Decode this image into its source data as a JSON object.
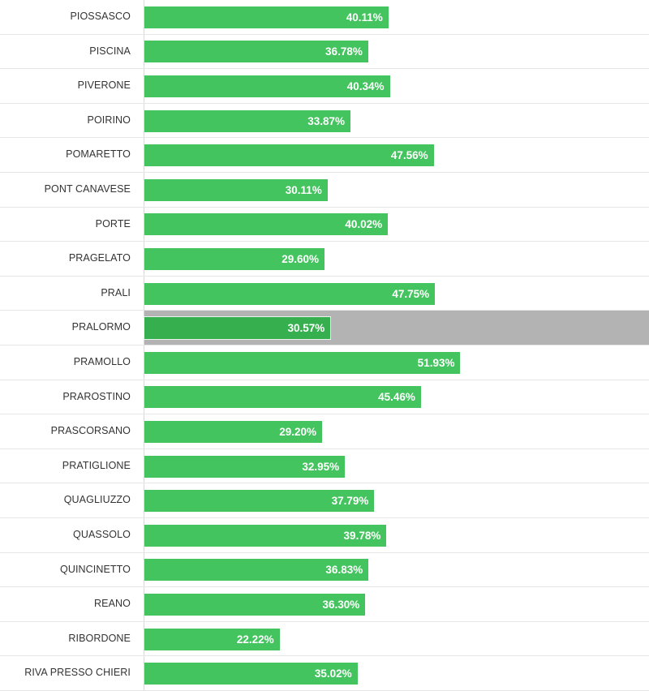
{
  "chart_data": {
    "type": "bar",
    "orientation": "horizontal",
    "title": "",
    "xlabel": "",
    "ylabel": "",
    "xlim": [
      0,
      80
    ],
    "highlighted_category": "PRALORMO",
    "value_format": "percent",
    "colors": {
      "bar": "#44c45f",
      "bar_highlighted": "#36b04f",
      "row_highlight": "#b3b3b3",
      "label_text": "#333333",
      "value_text": "#ffffff"
    },
    "categories": [
      "PIOSSASCO",
      "PISCINA",
      "PIVERONE",
      "POIRINO",
      "POMARETTO",
      "PONT CANAVESE",
      "PORTE",
      "PRAGELATO",
      "PRALI",
      "PRALORMO",
      "PRAMOLLO",
      "PRAROSTINO",
      "PRASCORSANO",
      "PRATIGLIONE",
      "QUAGLIUZZO",
      "QUASSOLO",
      "QUINCINETTO",
      "REANO",
      "RIBORDONE",
      "RIVA PRESSO CHIERI"
    ],
    "values": [
      40.11,
      36.78,
      40.34,
      33.87,
      47.56,
      30.11,
      40.02,
      29.6,
      47.75,
      30.57,
      51.93,
      45.46,
      29.2,
      32.95,
      37.79,
      39.78,
      36.83,
      36.3,
      22.22,
      35.02
    ],
    "value_labels": [
      "40.11%",
      "36.78%",
      "40.34%",
      "33.87%",
      "47.56%",
      "30.11%",
      "40.02%",
      "29.60%",
      "47.75%",
      "30.57%",
      "51.93%",
      "45.46%",
      "29.20%",
      "32.95%",
      "37.79%",
      "39.78%",
      "36.83%",
      "36.30%",
      "22.22%",
      "35.02%"
    ]
  }
}
